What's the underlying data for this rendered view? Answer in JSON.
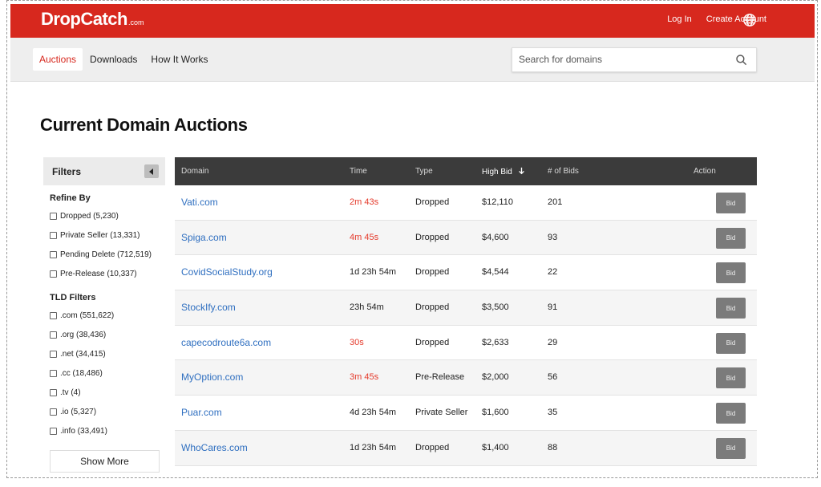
{
  "brand": {
    "logo": "DropCatch",
    "logo_suffix": ".com"
  },
  "header": {
    "login": "Log In",
    "create_account": "Create Account",
    "globe_icon": "globe-icon"
  },
  "nav": {
    "tabs": [
      {
        "label": "Auctions",
        "active": true
      },
      {
        "label": "Downloads",
        "active": false
      },
      {
        "label": "How It Works",
        "active": false
      }
    ],
    "search_placeholder": "Search for domains"
  },
  "page": {
    "title": "Current Domain Auctions"
  },
  "filters": {
    "title": "Filters",
    "refine_title": "Refine By",
    "refine": [
      "Dropped (5,230)",
      "Private Seller (13,331)",
      "Pending Delete (712,519)",
      "Pre-Release (10,337)"
    ],
    "tld_title": "TLD Filters",
    "tld": [
      ".com (551,622)",
      ".org (38,436)",
      ".net (34,415)",
      ".cc (18,486)",
      ".tv (4)",
      ".io (5,327)",
      ".info (33,491)"
    ],
    "show_more": "Show More"
  },
  "table": {
    "headers": {
      "domain": "Domain",
      "time": "Time",
      "type": "Type",
      "high_bid": "High Bid",
      "bids": "# of Bids",
      "action": "Action"
    },
    "bid_label": "Bid",
    "rows": [
      {
        "domain": "Vati.com",
        "time": "2m 43s",
        "urgent": true,
        "type": "Dropped",
        "high_bid": "$12,110",
        "bids": "201"
      },
      {
        "domain": "Spiga.com",
        "time": "4m 45s",
        "urgent": true,
        "type": "Dropped",
        "high_bid": "$4,600",
        "bids": "93"
      },
      {
        "domain": "CovidSocialStudy.org",
        "time": "1d 23h 54m",
        "urgent": false,
        "type": "Dropped",
        "high_bid": "$4,544",
        "bids": "22"
      },
      {
        "domain": "StockIfy.com",
        "time": "23h 54m",
        "urgent": false,
        "type": "Dropped",
        "high_bid": "$3,500",
        "bids": "91"
      },
      {
        "domain": "capecodroute6a.com",
        "time": "30s",
        "urgent": true,
        "type": "Dropped",
        "high_bid": "$2,633",
        "bids": "29"
      },
      {
        "domain": "MyOption.com",
        "time": "3m 45s",
        "urgent": true,
        "type": "Pre-Release",
        "high_bid": "$2,000",
        "bids": "56"
      },
      {
        "domain": "Puar.com",
        "time": "4d 23h 54m",
        "urgent": false,
        "type": "Private Seller",
        "high_bid": "$1,600",
        "bids": "35"
      },
      {
        "domain": "WhoCares.com",
        "time": "1d 23h 54m",
        "urgent": false,
        "type": "Dropped",
        "high_bid": "$1,400",
        "bids": "88"
      }
    ]
  },
  "colors": {
    "brand_red": "#d7281e",
    "urgent_red": "#e53a2b",
    "link_blue": "#2f6fc0",
    "table_header": "#3b3b3b"
  }
}
